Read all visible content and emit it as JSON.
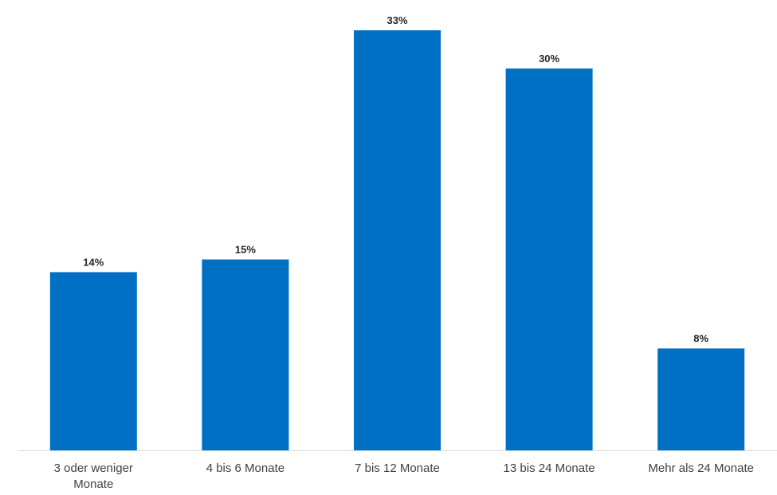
{
  "chart_data": {
    "type": "bar",
    "categories": [
      "3 oder weniger Monate",
      "4 bis 6 Monate",
      "7 bis 12 Monate",
      "13 bis 24 Monate",
      "Mehr als 24 Monate"
    ],
    "category_label_lines": [
      [
        "3 oder weniger",
        "Monate"
      ],
      [
        "4 bis 6 Monate"
      ],
      [
        "7 bis 12 Monate"
      ],
      [
        "13 bis 24 Monate"
      ],
      [
        "Mehr als 24 Monate"
      ]
    ],
    "values": [
      14,
      15,
      33,
      30,
      8
    ],
    "value_labels": [
      "14%",
      "15%",
      "33%",
      "30%",
      "8%"
    ],
    "value_unit": "%",
    "ylim": [
      0,
      33
    ],
    "grid": false,
    "legend": "none",
    "bar_color": "#0070C5",
    "axis_color": "#D9D9D9"
  }
}
